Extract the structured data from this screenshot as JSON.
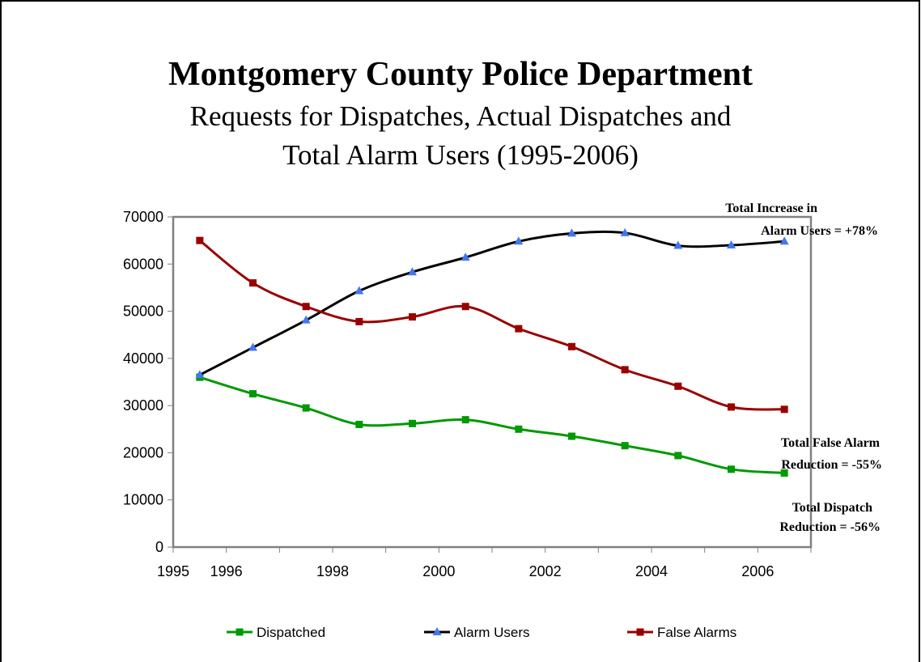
{
  "title": "Montgomery County Police Department",
  "subtitle_line1": "Requests for Dispatches, Actual Dispatches and",
  "subtitle_line2": "Total Alarm Users (1995-2006)",
  "chart_data": {
    "type": "line",
    "x": [
      1995,
      1996,
      1997,
      1998,
      1999,
      2000,
      2001,
      2002,
      2003,
      2004,
      2005,
      2006
    ],
    "x_tick_labels": [
      "1995",
      "1996",
      "",
      "1998",
      "",
      "2000",
      "",
      "2002",
      "",
      "2004",
      "",
      "2006"
    ],
    "ylim": [
      0,
      70000
    ],
    "y_ticks": [
      0,
      10000,
      20000,
      30000,
      40000,
      50000,
      60000,
      70000
    ],
    "series": [
      {
        "name": "Dispatched",
        "color": "#009900",
        "marker": "square",
        "values": [
          36000,
          32500,
          29500,
          26000,
          26200,
          27000,
          25000,
          23500,
          21500,
          19400,
          16500,
          15700
        ]
      },
      {
        "name": "Alarm Users",
        "color": "#000000",
        "marker_color": "#4477ee",
        "marker": "triangle",
        "values": [
          36500,
          42300,
          48100,
          54300,
          58300,
          61400,
          64800,
          66500,
          66600,
          63900,
          64000,
          64800
        ]
      },
      {
        "name": "False Alarms",
        "color": "#990000",
        "marker": "square",
        "values": [
          65000,
          56000,
          51000,
          47800,
          48800,
          51000,
          46300,
          42500,
          37600,
          34100,
          29700,
          29200
        ]
      }
    ],
    "legend_position": "bottom",
    "annotations": [
      {
        "id": "alarm",
        "lines": [
          "Total Increase in",
          "Alarm Users = +78%"
        ]
      },
      {
        "id": "false",
        "lines": [
          "Total False Alarm",
          "Reduction = -55%"
        ]
      },
      {
        "id": "dispatch",
        "lines": [
          "Total Dispatch",
          "Reduction = -56%"
        ]
      }
    ]
  }
}
